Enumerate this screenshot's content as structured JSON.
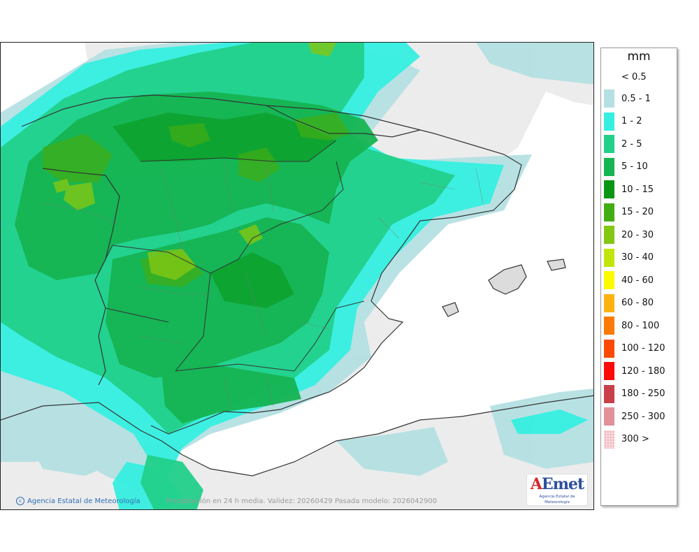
{
  "legend": {
    "unit": "mm",
    "top_label": "< 0.5",
    "items": [
      {
        "label": "0.5 - 1",
        "color": "#b5e0e3"
      },
      {
        "label": "1 - 2",
        "color": "#36efe0"
      },
      {
        "label": "2 - 5",
        "color": "#22d08a"
      },
      {
        "label": "5 - 10",
        "color": "#16b452"
      },
      {
        "label": "10 - 15",
        "color": "#0a9615"
      },
      {
        "label": "15 - 20",
        "color": "#42ad13"
      },
      {
        "label": "20 - 30",
        "color": "#83c713"
      },
      {
        "label": "30 - 40",
        "color": "#c3e40a"
      },
      {
        "label": "40 - 60",
        "color": "#fcfa02"
      },
      {
        "label": "60 - 80",
        "color": "#fcb312"
      },
      {
        "label": "80 - 100",
        "color": "#fc7a05"
      },
      {
        "label": "100 - 120",
        "color": "#fc4a06"
      },
      {
        "label": "120 - 180",
        "color": "#fc0a0a"
      },
      {
        "label": "180 - 250",
        "color": "#c9404a"
      },
      {
        "label": "250 - 300",
        "color": "#e2909a"
      },
      {
        "label": "300 >",
        "color": "#f6d6da"
      }
    ]
  },
  "map": {
    "credit": "Agencia Estatal de Meteorología",
    "credit_icon": "copyright-icon",
    "validity": "Precipitación en 24 h media. Validez: 20260429 Pasada modelo: 2026042900",
    "logo_text_a": "A",
    "logo_text": "Emet",
    "logo_sub": "Agencia Estatal de Meteorología",
    "colors": {
      "sea": "#ffffff",
      "land": "#ececec",
      "border": "#333333"
    }
  }
}
